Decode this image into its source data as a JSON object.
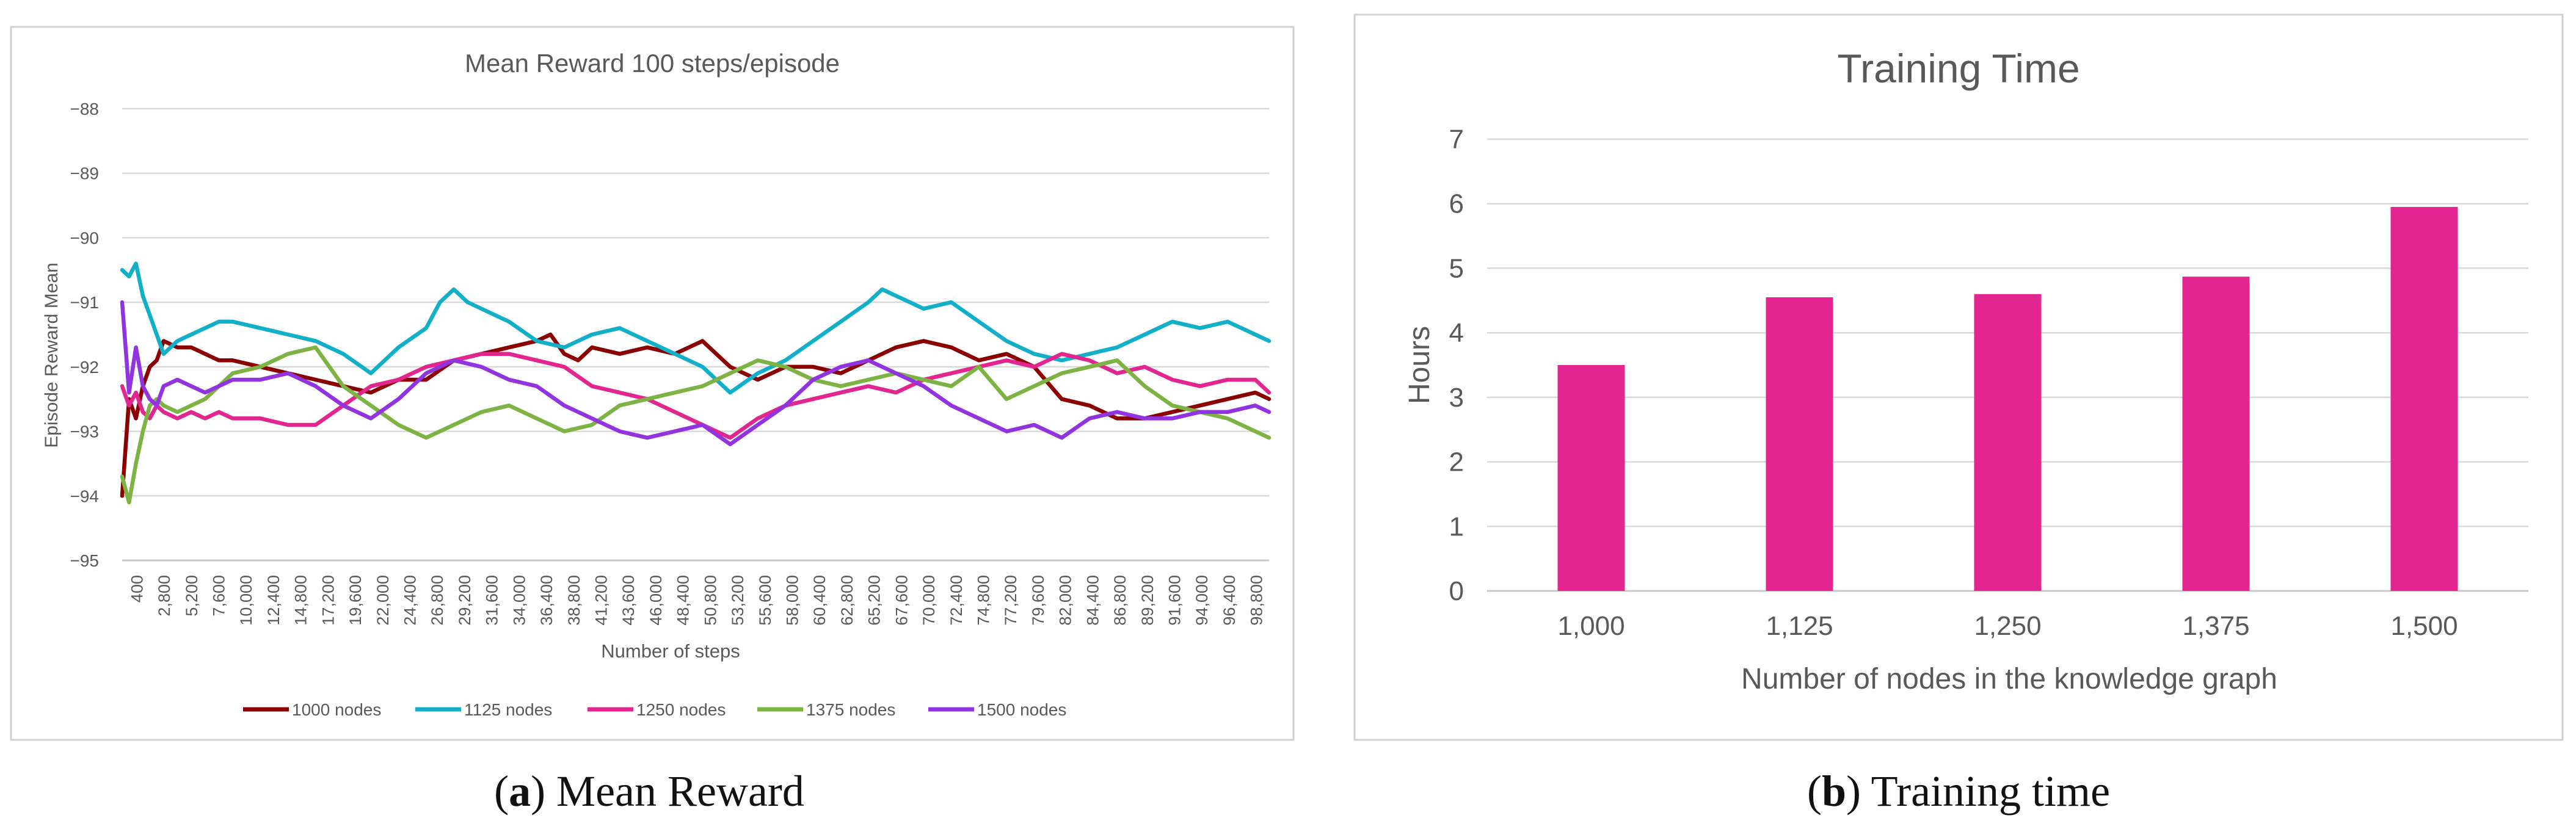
{
  "colors": {
    "1000": "#8b0000",
    "1125": "#12b0c8",
    "1250": "#e3268f",
    "1375": "#7cb342",
    "1500": "#9233e0",
    "bar": "#e3268f"
  },
  "chart_data": [
    {
      "id": "a",
      "type": "line",
      "title": "Mean Reward 100 steps/episode",
      "xlabel": "Number of steps",
      "ylabel": "Episode Reward Mean",
      "ylim": [
        -95,
        -88
      ],
      "yticks": [
        -95,
        -94,
        -93,
        -92,
        -91,
        -90,
        -89,
        -88
      ],
      "ytick_labels": [
        "−95",
        "−94",
        "−93",
        "−92",
        "−91",
        "−90",
        "−89",
        "−88"
      ],
      "xlim": [
        400,
        100000
      ],
      "xtick_labels": [
        "400",
        "2,800",
        "5,200",
        "7,600",
        "10,000",
        "12,400",
        "14,800",
        "17,200",
        "19,600",
        "22,000",
        "24,400",
        "26,800",
        "29,200",
        "31,600",
        "34,000",
        "36,400",
        "38,800",
        "41,200",
        "43,600",
        "46,000",
        "48,400",
        "50,800",
        "53,200",
        "55,600",
        "58,000",
        "60,400",
        "62,800",
        "65,200",
        "67,600",
        "70,000",
        "72,400",
        "74,800",
        "77,200",
        "79,600",
        "82,000",
        "84,400",
        "86,800",
        "89,200",
        "91,600",
        "94,000",
        "96,400",
        "98,800"
      ],
      "legend_position": "bottom",
      "series": [
        {
          "name": "1000 nodes",
          "color_key": "1000",
          "x": [
            400,
            1000,
            1600,
            2200,
            2800,
            3400,
            4000,
            5200,
            6400,
            7600,
            8800,
            10000,
            12400,
            14800,
            17200,
            19600,
            22000,
            24400,
            26800,
            29200,
            31600,
            34000,
            36400,
            37600,
            38800,
            40000,
            41200,
            43600,
            46000,
            48400,
            50800,
            52000,
            53200,
            55600,
            58000,
            60400,
            62800,
            65200,
            67600,
            70000,
            72400,
            74800,
            77200,
            79600,
            82000,
            84400,
            86800,
            89200,
            91600,
            94000,
            96400,
            98800,
            100000
          ],
          "y": [
            -94.0,
            -92.5,
            -92.8,
            -92.3,
            -92.0,
            -91.9,
            -91.6,
            -91.7,
            -91.7,
            -91.8,
            -91.9,
            -91.9,
            -92.0,
            -92.1,
            -92.2,
            -92.3,
            -92.4,
            -92.2,
            -92.2,
            -91.9,
            -91.8,
            -91.7,
            -91.6,
            -91.5,
            -91.8,
            -91.9,
            -91.7,
            -91.8,
            -91.7,
            -91.8,
            -91.6,
            -91.8,
            -92.0,
            -92.2,
            -92.0,
            -92.0,
            -92.1,
            -91.9,
            -91.7,
            -91.6,
            -91.7,
            -91.9,
            -91.8,
            -92.0,
            -92.5,
            -92.6,
            -92.8,
            -92.8,
            -92.7,
            -92.6,
            -92.5,
            -92.4,
            -92.5
          ]
        },
        {
          "name": "1125 nodes",
          "color_key": "1125",
          "x": [
            400,
            1000,
            1600,
            2200,
            2800,
            3400,
            4000,
            5200,
            6400,
            7600,
            8800,
            10000,
            12400,
            14800,
            17200,
            19600,
            22000,
            24400,
            26800,
            28000,
            29200,
            30400,
            31600,
            34000,
            36400,
            38800,
            41200,
            43600,
            46000,
            48400,
            50800,
            53200,
            55600,
            58000,
            60400,
            62800,
            65200,
            66400,
            67600,
            68800,
            70000,
            72400,
            74800,
            77200,
            79600,
            82000,
            84400,
            86800,
            89200,
            91600,
            94000,
            96400,
            98800,
            100000
          ],
          "y": [
            -90.5,
            -90.6,
            -90.4,
            -90.9,
            -91.2,
            -91.5,
            -91.8,
            -91.6,
            -91.5,
            -91.4,
            -91.3,
            -91.3,
            -91.4,
            -91.5,
            -91.6,
            -91.8,
            -92.1,
            -91.7,
            -91.4,
            -91.0,
            -90.8,
            -91.0,
            -91.1,
            -91.3,
            -91.6,
            -91.7,
            -91.5,
            -91.4,
            -91.6,
            -91.8,
            -92.0,
            -92.4,
            -92.1,
            -91.9,
            -91.6,
            -91.3,
            -91.0,
            -90.8,
            -90.9,
            -91.0,
            -91.1,
            -91.0,
            -91.3,
            -91.6,
            -91.8,
            -91.9,
            -91.8,
            -91.7,
            -91.5,
            -91.3,
            -91.4,
            -91.3,
            -91.5,
            -91.6
          ]
        },
        {
          "name": "1250 nodes",
          "color_key": "1250",
          "x": [
            400,
            1000,
            1600,
            2200,
            2800,
            3400,
            4000,
            5200,
            6400,
            7600,
            8800,
            10000,
            12400,
            14800,
            17200,
            19600,
            22000,
            24400,
            26800,
            29200,
            31600,
            34000,
            36400,
            38800,
            41200,
            43600,
            46000,
            48400,
            50800,
            53200,
            55600,
            58000,
            60400,
            62800,
            65200,
            67600,
            70000,
            72400,
            74800,
            77200,
            79600,
            82000,
            84400,
            86800,
            89200,
            91600,
            94000,
            96400,
            98800,
            100000
          ],
          "y": [
            -92.3,
            -92.6,
            -92.4,
            -92.7,
            -92.8,
            -92.6,
            -92.7,
            -92.8,
            -92.7,
            -92.8,
            -92.7,
            -92.8,
            -92.8,
            -92.9,
            -92.9,
            -92.6,
            -92.3,
            -92.2,
            -92.0,
            -91.9,
            -91.8,
            -91.8,
            -91.9,
            -92.0,
            -92.3,
            -92.4,
            -92.5,
            -92.7,
            -92.9,
            -93.1,
            -92.8,
            -92.6,
            -92.5,
            -92.4,
            -92.3,
            -92.4,
            -92.2,
            -92.1,
            -92.0,
            -91.9,
            -92.0,
            -91.8,
            -91.9,
            -92.1,
            -92.0,
            -92.2,
            -92.3,
            -92.2,
            -92.2,
            -92.4
          ]
        },
        {
          "name": "1375 nodes",
          "color_key": "1375",
          "x": [
            400,
            1000,
            1600,
            2200,
            2800,
            3400,
            4000,
            5200,
            6400,
            7600,
            8800,
            10000,
            12400,
            14800,
            17200,
            19600,
            22000,
            24400,
            26800,
            29200,
            31600,
            34000,
            36400,
            38800,
            41200,
            43600,
            46000,
            48400,
            50800,
            53200,
            55600,
            58000,
            60400,
            62800,
            65200,
            67600,
            70000,
            72400,
            74800,
            77200,
            79600,
            82000,
            84400,
            86800,
            89200,
            91600,
            94000,
            96400,
            98800,
            100000
          ],
          "y": [
            -93.7,
            -94.1,
            -93.5,
            -93.0,
            -92.6,
            -92.5,
            -92.6,
            -92.7,
            -92.6,
            -92.5,
            -92.3,
            -92.1,
            -92.0,
            -91.8,
            -91.7,
            -92.3,
            -92.6,
            -92.9,
            -93.1,
            -92.9,
            -92.7,
            -92.6,
            -92.8,
            -93.0,
            -92.9,
            -92.6,
            -92.5,
            -92.4,
            -92.3,
            -92.1,
            -91.9,
            -92.0,
            -92.2,
            -92.3,
            -92.2,
            -92.1,
            -92.2,
            -92.3,
            -92.0,
            -92.5,
            -92.3,
            -92.1,
            -92.0,
            -91.9,
            -92.3,
            -92.6,
            -92.7,
            -92.8,
            -93.0,
            -93.1
          ]
        },
        {
          "name": "1500 nodes",
          "color_key": "1500",
          "x": [
            400,
            1000,
            1600,
            2200,
            2800,
            3400,
            4000,
            5200,
            6400,
            7600,
            8800,
            10000,
            12400,
            14800,
            17200,
            19600,
            22000,
            24400,
            26800,
            29200,
            31600,
            34000,
            36400,
            38800,
            41200,
            43600,
            46000,
            48400,
            50800,
            53200,
            55600,
            58000,
            60400,
            62800,
            65200,
            67600,
            70000,
            72400,
            74800,
            77200,
            79600,
            82000,
            84400,
            86800,
            89200,
            91600,
            94000,
            96400,
            98800,
            100000
          ],
          "y": [
            -91.0,
            -92.4,
            -91.7,
            -92.3,
            -92.5,
            -92.6,
            -92.3,
            -92.2,
            -92.3,
            -92.4,
            -92.3,
            -92.2,
            -92.2,
            -92.1,
            -92.3,
            -92.6,
            -92.8,
            -92.5,
            -92.1,
            -91.9,
            -92.0,
            -92.2,
            -92.3,
            -92.6,
            -92.8,
            -93.0,
            -93.1,
            -93.0,
            -92.9,
            -93.2,
            -92.9,
            -92.6,
            -92.2,
            -92.0,
            -91.9,
            -92.1,
            -92.3,
            -92.6,
            -92.8,
            -93.0,
            -92.9,
            -93.1,
            -92.8,
            -92.7,
            -92.8,
            -92.8,
            -92.7,
            -92.7,
            -92.6,
            -92.7
          ]
        }
      ]
    },
    {
      "id": "b",
      "type": "bar",
      "title": "Training Time",
      "xlabel": "Number of nodes in the knowledge graph",
      "ylabel": "Hours",
      "ylim": [
        0,
        7
      ],
      "yticks": [
        0,
        1,
        2,
        3,
        4,
        5,
        6,
        7
      ],
      "categories": [
        "1,000",
        "1,125",
        "1,250",
        "1,375",
        "1,500"
      ],
      "values": [
        3.5,
        4.55,
        4.6,
        4.87,
        5.95
      ],
      "color_key": "bar"
    }
  ],
  "captions": [
    {
      "label": "a",
      "text": ") Mean Reward",
      "open": "("
    },
    {
      "label": "b",
      "text": ") Training time",
      "open": "("
    }
  ]
}
